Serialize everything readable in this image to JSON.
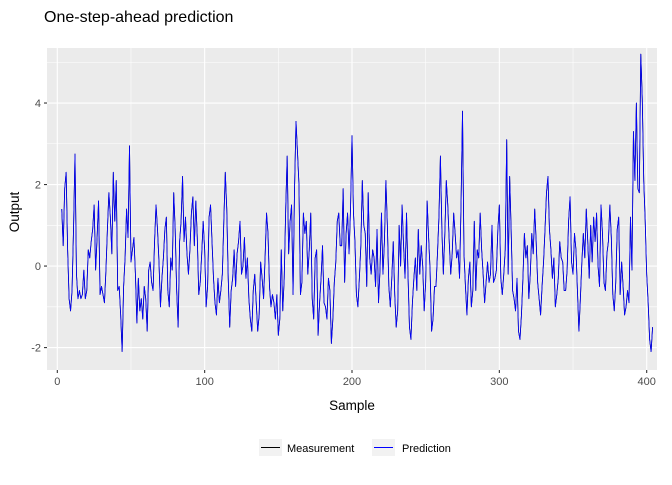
{
  "chart_data": {
    "type": "line",
    "title": "One-step-ahead prediction",
    "xlabel": "Sample",
    "ylabel": "Output",
    "xlim": [
      -7,
      407
    ],
    "ylim": [
      -2.55,
      5.35
    ],
    "x_ticks": [
      0,
      100,
      200,
      300,
      400
    ],
    "y_ticks": [
      -2,
      0,
      2,
      4
    ],
    "x_tick_labels": [
      "0",
      "100",
      "200",
      "300",
      "400"
    ],
    "y_tick_labels": [
      "-2",
      "0",
      "2",
      "4"
    ],
    "grid": true,
    "legend_position": "bottom",
    "series": [
      {
        "name": "Measurement",
        "color": "#000000",
        "x_start": 3,
        "values": [
          1.4,
          0.5,
          1.9,
          2.3,
          0.4,
          -0.8,
          -1.1,
          -0.6,
          0.9,
          2.75,
          -0.2,
          -0.8,
          -0.6,
          -0.8,
          -0.7,
          -0.1,
          -0.8,
          -0.6,
          0.4,
          0.2,
          0.6,
          0.9,
          1.5,
          -0.1,
          0.7,
          1.6,
          -0.7,
          -0.5,
          -0.7,
          -0.9,
          -0.1,
          0.9,
          1.8,
          1.2,
          0.3,
          2.3,
          1.1,
          2.1,
          -0.6,
          -0.5,
          -1.2,
          -2.1,
          -0.5,
          0.2,
          1.4,
          0.7,
          2.95,
          0.1,
          0.4,
          0.7,
          -0.2,
          -1.4,
          -0.3,
          -1.1,
          -0.8,
          -1.3,
          -0.5,
          -0.8,
          -1.6,
          -0.1,
          0.1,
          -0.4,
          -0.6,
          0.6,
          1.5,
          0.9,
          0.1,
          -1.0,
          -0.3,
          0.2,
          0.9,
          1.2,
          -0.6,
          -1.0,
          0.2,
          -0.1,
          1.8,
          0.9,
          -0.6,
          -1.5,
          0.6,
          1.1,
          2.2,
          0.6,
          1.2,
          0.3,
          -0.2,
          0.4,
          1.3,
          1.7,
          0.5,
          1.6,
          0.7,
          -0.7,
          -0.4,
          0.3,
          1.1,
          0.4,
          -1.0,
          -0.5,
          1.2,
          1.5,
          0.6,
          -0.3,
          -0.9,
          -1.2,
          -0.3,
          -0.9,
          -0.6,
          -0.2,
          1.1,
          2.3,
          1.4,
          -0.3,
          -1.5,
          -0.6,
          -0.3,
          0.4,
          -0.5,
          0.3,
          0.6,
          1.1,
          -0.2,
          0.0,
          0.7,
          -0.3,
          0.2,
          -0.8,
          -1.3,
          -1.6,
          -0.6,
          -0.2,
          -0.9,
          -1.6,
          -1.2,
          0.1,
          -0.3,
          -0.8,
          0.2,
          1.3,
          0.8,
          -0.5,
          -1.0,
          -0.7,
          -0.9,
          -1.3,
          -0.7,
          -1.7,
          -1.3,
          0.4,
          -1.1,
          -0.3,
          1.4,
          2.7,
          0.3,
          1.1,
          1.5,
          -0.7,
          1.9,
          3.55,
          2.8,
          2.0,
          -0.7,
          -0.4,
          1.3,
          0.8,
          1.1,
          -0.2,
          0.4,
          1.3,
          -0.8,
          -1.3,
          0.2,
          0.4,
          -1.7,
          -0.9,
          -0.3,
          0.5,
          -0.9,
          -1.0,
          -1.3,
          -0.3,
          -0.6,
          -1.9,
          -1.3,
          -0.4,
          0.1,
          1.1,
          1.3,
          0.5,
          0.5,
          1.9,
          -0.4,
          0.8,
          1.3,
          0.3,
          1.4,
          3.2,
          1.3,
          0.6,
          -0.7,
          -1.0,
          -0.3,
          0.5,
          2.1,
          1.0,
          0.8,
          -0.5,
          1.8,
          0.2,
          -0.2,
          0.4,
          0.2,
          -0.5,
          0.9,
          -0.9,
          -0.1,
          1.3,
          -0.2,
          0.6,
          2.1,
          1.0,
          -0.5,
          -1.0,
          -0.3,
          0.6,
          -0.7,
          -1.5,
          -1.1,
          1.0,
          0.0,
          1.5,
          0.5,
          -0.3,
          1.3,
          -0.2,
          -1.5,
          -1.8,
          -0.9,
          -0.3,
          0.2,
          -0.6,
          0.9,
          -0.2,
          0.5,
          0.0,
          -1.1,
          -0.4,
          1.6,
          0.7,
          -0.1,
          -1.6,
          -1.3,
          -0.5,
          -0.5,
          0.3,
          1.2,
          2.7,
          0.9,
          -0.2,
          0.8,
          2.1,
          1.5,
          0.6,
          -0.2,
          0.3,
          1.3,
          0.8,
          0.2,
          0.4,
          -0.3,
          1.5,
          3.8,
          0.3,
          -0.5,
          -1.2,
          -0.3,
          0.1,
          -1.0,
          -0.6,
          1.1,
          -0.6,
          0.4,
          0.2,
          1.3,
          0.4,
          -0.2,
          -0.9,
          -0.4,
          0.1,
          -0.4,
          -0.2,
          1.0,
          -0.4,
          -0.3,
          -0.1,
          0.9,
          1.5,
          -0.3,
          -0.7,
          -0.2,
          0.4,
          3.1,
          -0.2,
          2.2,
          0.9,
          -0.6,
          -0.8,
          -1.1,
          -0.3,
          -1.6,
          -1.8,
          -1.2,
          -0.3,
          0.8,
          0.2,
          0.5,
          -0.8,
          -0.2,
          0.8,
          0.3,
          1.4,
          0.6,
          -0.4,
          -0.8,
          -1.2,
          -0.5,
          0.1,
          0.9,
          1.8,
          2.2,
          0.9,
          0.4,
          -0.3,
          0.2,
          -1.0,
          -0.7,
          -0.3,
          0.6,
          0.2,
          0.1,
          -0.6,
          -0.6,
          -0.1,
          1.1,
          1.7,
          0.1,
          -0.2,
          0.8,
          0.4,
          -0.6,
          -1.6,
          -0.8,
          0.1,
          0.8,
          0.2,
          1.4,
          0.6,
          -0.3,
          1.0,
          0.1,
          1.2,
          0.6,
          1.3,
          0.0,
          -0.5,
          1.5,
          0.8,
          -0.4,
          -0.6,
          0.3,
          0.6,
          1.5,
          0.7,
          -0.7,
          -1.1,
          -0.4,
          0.9,
          1.2,
          -0.7,
          0.1,
          -0.5,
          -1.2,
          -1.0,
          -0.6,
          -0.9,
          1.2,
          -0.1,
          3.3,
          2.1,
          4.0,
          1.9,
          1.8,
          5.2,
          4.1,
          2.1,
          1.1,
          -0.2,
          -0.9,
          -1.8,
          -2.1,
          -1.5
        ]
      },
      {
        "name": "Prediction",
        "color": "#0000ff",
        "x_start": 3,
        "values": [
          1.4,
          0.5,
          1.9,
          2.3,
          0.4,
          -0.8,
          -1.1,
          -0.6,
          0.9,
          2.75,
          -0.2,
          -0.8,
          -0.6,
          -0.8,
          -0.7,
          -0.1,
          -0.8,
          -0.6,
          0.4,
          0.2,
          0.6,
          0.9,
          1.5,
          -0.1,
          0.7,
          1.6,
          -0.7,
          -0.5,
          -0.7,
          -0.9,
          -0.1,
          0.9,
          1.8,
          1.2,
          0.3,
          2.3,
          1.1,
          2.1,
          -0.6,
          -0.5,
          -1.2,
          -2.1,
          -0.5,
          0.2,
          1.4,
          0.7,
          2.95,
          0.1,
          0.4,
          0.7,
          -0.2,
          -1.4,
          -0.3,
          -1.1,
          -0.8,
          -1.3,
          -0.5,
          -0.8,
          -1.6,
          -0.1,
          0.1,
          -0.4,
          -0.6,
          0.6,
          1.5,
          0.9,
          0.1,
          -1.0,
          -0.3,
          0.2,
          0.9,
          1.2,
          -0.6,
          -1.0,
          0.2,
          -0.1,
          1.8,
          0.9,
          -0.6,
          -1.5,
          0.6,
          1.1,
          2.2,
          0.6,
          1.2,
          0.3,
          -0.2,
          0.4,
          1.3,
          1.7,
          0.5,
          1.6,
          0.7,
          -0.7,
          -0.4,
          0.3,
          1.1,
          0.4,
          -1.0,
          -0.5,
          1.2,
          1.5,
          0.6,
          -0.3,
          -0.9,
          -1.2,
          -0.3,
          -0.9,
          -0.6,
          -0.2,
          1.1,
          2.3,
          1.4,
          -0.3,
          -1.5,
          -0.6,
          -0.3,
          0.4,
          -0.5,
          0.3,
          0.6,
          1.1,
          -0.2,
          0.0,
          0.7,
          -0.3,
          0.2,
          -0.8,
          -1.3,
          -1.6,
          -0.6,
          -0.2,
          -0.9,
          -1.6,
          -1.2,
          0.1,
          -0.3,
          -0.8,
          0.2,
          1.3,
          0.8,
          -0.5,
          -1.0,
          -0.7,
          -0.9,
          -1.3,
          -0.7,
          -1.7,
          -1.3,
          0.4,
          -1.1,
          -0.3,
          1.4,
          2.7,
          0.3,
          1.1,
          1.5,
          -0.7,
          1.9,
          3.55,
          2.8,
          2.0,
          -0.7,
          -0.4,
          1.3,
          0.8,
          1.1,
          -0.2,
          0.4,
          1.3,
          -0.8,
          -1.3,
          0.2,
          0.4,
          -1.7,
          -0.9,
          -0.3,
          0.5,
          -0.9,
          -1.0,
          -1.3,
          -0.3,
          -0.6,
          -1.9,
          -1.3,
          -0.4,
          0.1,
          1.1,
          1.3,
          0.5,
          0.5,
          1.9,
          -0.4,
          0.8,
          1.3,
          0.3,
          1.4,
          3.2,
          1.3,
          0.6,
          -0.7,
          -1.0,
          -0.3,
          0.5,
          2.1,
          1.0,
          0.8,
          -0.5,
          1.8,
          0.2,
          -0.2,
          0.4,
          0.2,
          -0.5,
          0.9,
          -0.9,
          -0.1,
          1.3,
          -0.2,
          0.6,
          2.1,
          1.0,
          -0.5,
          -1.0,
          -0.3,
          0.6,
          -0.7,
          -1.5,
          -1.1,
          1.0,
          0.0,
          1.5,
          0.5,
          -0.3,
          1.3,
          -0.2,
          -1.5,
          -1.8,
          -0.9,
          -0.3,
          0.2,
          -0.6,
          0.9,
          -0.2,
          0.5,
          0.0,
          -1.1,
          -0.4,
          1.6,
          0.7,
          -0.1,
          -1.6,
          -1.3,
          -0.5,
          -0.5,
          0.3,
          1.2,
          2.7,
          0.9,
          -0.2,
          0.8,
          2.1,
          1.5,
          0.6,
          -0.2,
          0.3,
          1.3,
          0.8,
          0.2,
          0.4,
          -0.3,
          1.5,
          3.8,
          0.3,
          -0.5,
          -1.2,
          -0.3,
          0.1,
          -1.0,
          -0.6,
          1.1,
          -0.6,
          0.4,
          0.2,
          1.3,
          0.4,
          -0.2,
          -0.9,
          -0.4,
          0.1,
          -0.4,
          -0.2,
          1.0,
          -0.4,
          -0.3,
          -0.1,
          0.9,
          1.5,
          -0.3,
          -0.7,
          -0.2,
          0.4,
          3.1,
          -0.2,
          2.2,
          0.9,
          -0.6,
          -0.8,
          -1.1,
          -0.3,
          -1.6,
          -1.8,
          -1.2,
          -0.3,
          0.8,
          0.2,
          0.5,
          -0.8,
          -0.2,
          0.8,
          0.3,
          1.4,
          0.6,
          -0.4,
          -0.8,
          -1.2,
          -0.5,
          0.1,
          0.9,
          1.8,
          2.2,
          0.9,
          0.4,
          -0.3,
          0.2,
          -1.0,
          -0.7,
          -0.3,
          0.6,
          0.2,
          0.1,
          -0.6,
          -0.6,
          -0.1,
          1.1,
          1.7,
          0.1,
          -0.2,
          0.8,
          0.4,
          -0.6,
          -1.6,
          -0.8,
          0.1,
          0.8,
          0.2,
          1.4,
          0.6,
          -0.3,
          1.0,
          0.1,
          1.2,
          0.6,
          1.3,
          0.0,
          -0.5,
          1.5,
          0.8,
          -0.4,
          -0.6,
          0.3,
          0.6,
          1.5,
          0.7,
          -0.7,
          -1.1,
          -0.4,
          0.9,
          1.2,
          -0.7,
          0.1,
          -0.5,
          -1.2,
          -1.0,
          -0.6,
          -0.9,
          1.2,
          -0.1,
          3.3,
          2.1,
          4.0,
          1.9,
          1.8,
          5.2,
          4.1,
          2.1,
          1.1,
          -0.2,
          -0.9,
          -1.8,
          -2.1,
          -1.5
        ]
      }
    ]
  }
}
